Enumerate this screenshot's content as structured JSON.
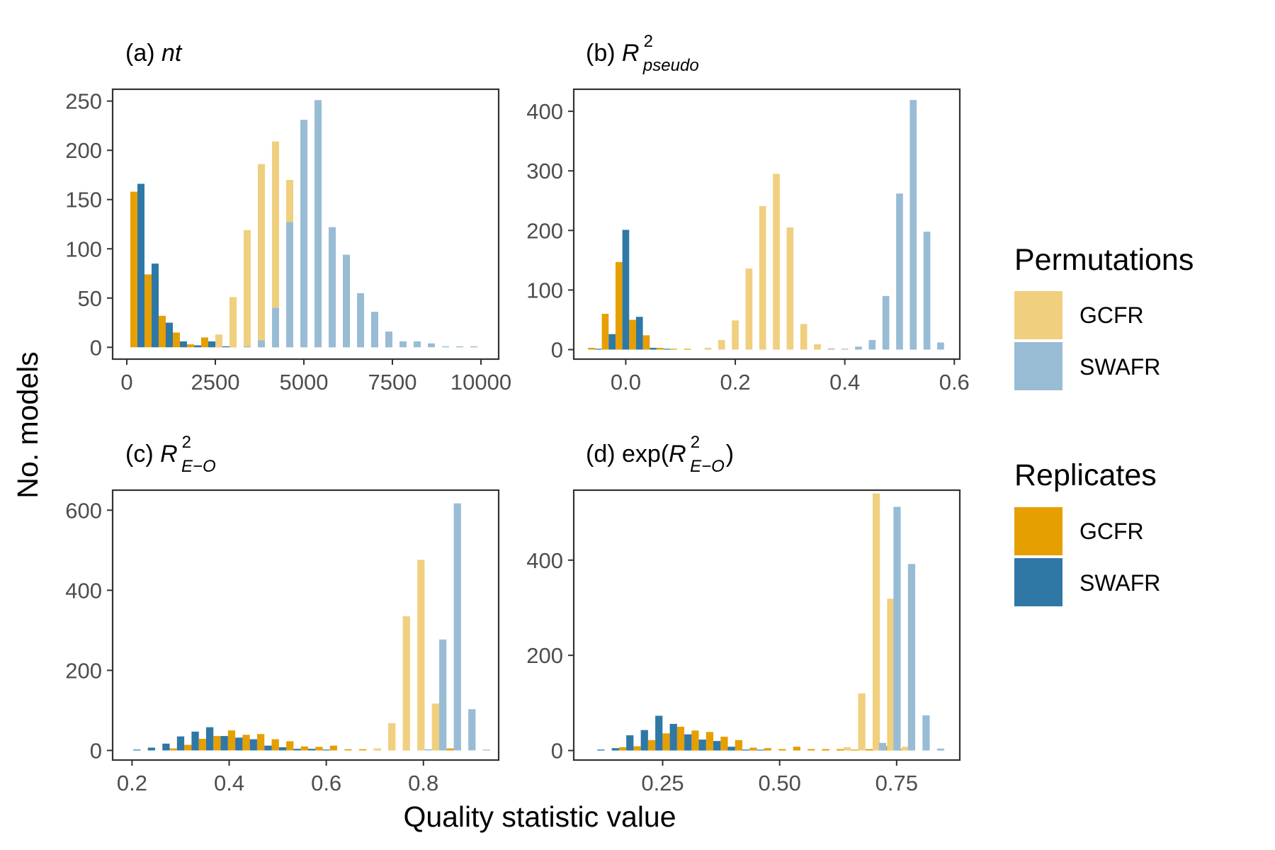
{
  "figure": {
    "xlabel": "Quality statistic value",
    "ylabel": "No. models"
  },
  "legend": {
    "groups": [
      {
        "title": "Permutations",
        "entries": [
          {
            "label": "GCFR",
            "color": "#f0cf7f"
          },
          {
            "label": "SWAFR",
            "color": "#99bcd5"
          }
        ]
      },
      {
        "title": "Replicates",
        "entries": [
          {
            "label": "GCFR",
            "color": "#e69f00"
          },
          {
            "label": "SWAFR",
            "color": "#2f78a6"
          }
        ]
      }
    ]
  },
  "chart_data": [
    {
      "type": "bar",
      "panel": "(a)",
      "title": "nt",
      "xlim": [
        -400,
        10500
      ],
      "ylim": [
        -12,
        262
      ],
      "xticks": [
        0,
        2500,
        5000,
        7500,
        10000
      ],
      "xtick_labels": [
        "0",
        "2500",
        "5000",
        "7500",
        "10000"
      ],
      "yticks": [
        0,
        50,
        100,
        150,
        200,
        250
      ],
      "bin_width": 200,
      "series": [
        {
          "name": "Replicates GCFR",
          "color": "#e69f00",
          "x": [
            200,
            600,
            1000,
            1400,
            1800,
            2200,
            2600,
            3000
          ],
          "y": [
            158,
            74,
            32,
            15,
            3,
            10,
            6,
            1
          ]
        },
        {
          "name": "Replicates SWAFR",
          "color": "#2f78a6",
          "x": [
            400,
            800,
            1200,
            1600,
            2000,
            2400,
            2800
          ],
          "y": [
            166,
            85,
            25,
            6,
            2,
            6,
            1
          ]
        },
        {
          "name": "Permutations GCFR",
          "color": "#f0cf7f",
          "x": [
            2600,
            3000,
            3400,
            3800,
            4200,
            4600,
            5000,
            5400,
            5800,
            6200,
            6600,
            7000,
            7400
          ],
          "y": [
            13,
            51,
            119,
            186,
            209,
            170,
            124,
            55,
            29,
            7,
            3,
            3,
            1
          ]
        },
        {
          "name": "Permutations SWAFR",
          "color": "#99bcd5",
          "x": [
            3400,
            3800,
            4200,
            4600,
            5000,
            5400,
            5800,
            6200,
            6600,
            7000,
            7400,
            7800,
            8200,
            8600,
            9000,
            9400,
            9800
          ],
          "y": [
            1,
            7,
            40,
            127,
            231,
            251,
            122,
            94,
            55,
            36,
            16,
            6,
            6,
            4,
            1,
            1,
            1
          ]
        }
      ]
    },
    {
      "type": "bar",
      "panel": "(b)",
      "title": "R²pseudo",
      "xlim": [
        -0.095,
        0.61
      ],
      "ylim": [
        -16,
        437
      ],
      "xticks": [
        0.0,
        0.2,
        0.4,
        0.6
      ],
      "xtick_labels": [
        "0.0",
        "0.2",
        "0.4",
        "0.6"
      ],
      "yticks": [
        0,
        100,
        200,
        300,
        400
      ],
      "bin_width": 0.0125,
      "series": [
        {
          "name": "Replicates GCFR",
          "color": "#e69f00",
          "x": [
            -0.0625,
            -0.0375,
            -0.0125,
            0.0125,
            0.0375,
            0.0625,
            0.0875,
            0.1125
          ],
          "y": [
            3,
            60,
            147,
            50,
            24,
            3,
            1,
            1
          ]
        },
        {
          "name": "Replicates SWAFR",
          "color": "#2f78a6",
          "x": [
            -0.05,
            -0.025,
            0.0,
            0.025,
            0.05,
            0.075
          ],
          "y": [
            1,
            26,
            201,
            55,
            3,
            1
          ]
        },
        {
          "name": "Permutations GCFR",
          "color": "#f0cf7f",
          "x": [
            0.15,
            0.175,
            0.2,
            0.225,
            0.25,
            0.275,
            0.3,
            0.325,
            0.35,
            0.375
          ],
          "y": [
            3,
            16,
            49,
            136,
            241,
            295,
            205,
            43,
            9,
            2
          ]
        },
        {
          "name": "Permutations SWAFR",
          "color": "#99bcd5",
          "x": [
            0.375,
            0.4,
            0.425,
            0.45,
            0.475,
            0.5,
            0.525,
            0.55,
            0.575
          ],
          "y": [
            1,
            1,
            5,
            16,
            90,
            262,
            419,
            198,
            12
          ]
        }
      ]
    },
    {
      "type": "bar",
      "panel": "(c)",
      "title": "R²E−O",
      "xlim": [
        0.16,
        0.955
      ],
      "ylim": [
        -24,
        650
      ],
      "xticks": [
        0.2,
        0.4,
        0.6,
        0.8
      ],
      "xtick_labels": [
        "0.2",
        "0.4",
        "0.6",
        "0.8"
      ],
      "yticks": [
        0,
        200,
        400,
        600
      ],
      "bin_width": 0.015,
      "series": [
        {
          "name": "Replicates GCFR",
          "color": "#e69f00",
          "x": [
            0.285,
            0.315,
            0.345,
            0.375,
            0.405,
            0.435,
            0.465,
            0.495,
            0.525,
            0.555,
            0.585,
            0.615,
            0.645,
            0.675,
            0.705,
            0.735,
            0.765,
            0.795,
            0.825,
            0.855
          ],
          "y": [
            5,
            14,
            29,
            36,
            50,
            39,
            41,
            28,
            23,
            10,
            9,
            12,
            3,
            3,
            3,
            3,
            2,
            1,
            1,
            5
          ]
        },
        {
          "name": "Replicates SWAFR",
          "color": "#2f78a6",
          "x": [
            0.21,
            0.24,
            0.27,
            0.3,
            0.33,
            0.36,
            0.39,
            0.42,
            0.45,
            0.48,
            0.51,
            0.54,
            0.57,
            0.6
          ],
          "y": [
            2,
            7,
            17,
            35,
            47,
            58,
            36,
            32,
            28,
            12,
            8,
            4,
            4,
            2
          ]
        },
        {
          "name": "Permutations GCFR",
          "color": "#f0cf7f",
          "x": [
            0.705,
            0.735,
            0.765,
            0.795,
            0.825
          ],
          "y": [
            5,
            68,
            335,
            476,
            117
          ]
        },
        {
          "name": "Permutations SWAFR",
          "color": "#99bcd5",
          "x": [
            0.81,
            0.84,
            0.87,
            0.9,
            0.93
          ],
          "y": [
            3,
            277,
            617,
            103,
            2
          ]
        }
      ]
    },
    {
      "type": "bar",
      "panel": "(d)",
      "title": "exp(R²E−O)",
      "xlim": [
        0.06,
        0.885
      ],
      "ylim": [
        -20,
        547
      ],
      "xticks": [
        0.25,
        0.5,
        0.75
      ],
      "xtick_labels": [
        "0.25",
        "0.50",
        "0.75"
      ],
      "yticks": [
        0,
        200,
        400
      ],
      "bin_width": 0.0155,
      "series": [
        {
          "name": "Replicates GCFR",
          "color": "#e69f00",
          "x": [
            0.1645,
            0.1955,
            0.2265,
            0.2575,
            0.2885,
            0.3195,
            0.3505,
            0.3815,
            0.4125,
            0.4435,
            0.4745,
            0.5055,
            0.5365,
            0.5675,
            0.5985,
            0.6295,
            0.6605,
            0.6915,
            0.7225,
            0.7535
          ],
          "y": [
            7,
            9,
            22,
            36,
            50,
            42,
            39,
            29,
            22,
            6,
            5,
            3,
            8,
            3,
            3,
            3,
            2,
            3,
            9,
            3
          ]
        },
        {
          "name": "Replicates SWAFR",
          "color": "#2f78a6",
          "x": [
            0.118,
            0.149,
            0.18,
            0.211,
            0.242,
            0.273,
            0.304,
            0.335,
            0.366,
            0.397,
            0.428,
            0.459
          ],
          "y": [
            2,
            5,
            32,
            43,
            73,
            56,
            34,
            23,
            20,
            8,
            2,
            1
          ]
        },
        {
          "name": "Permutations GCFR",
          "color": "#f0cf7f",
          "x": [
            0.6445,
            0.6755,
            0.7065,
            0.7375,
            0.7685
          ],
          "y": [
            7,
            120,
            540,
            319,
            8
          ]
        },
        {
          "name": "Permutations SWAFR",
          "color": "#99bcd5",
          "x": [
            0.72,
            0.751,
            0.782,
            0.813,
            0.844
          ],
          "y": [
            16,
            512,
            392,
            74,
            4
          ]
        }
      ]
    }
  ]
}
